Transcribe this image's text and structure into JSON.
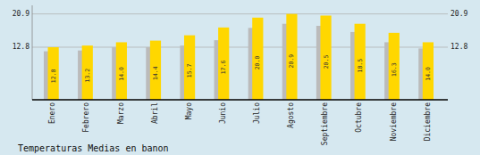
{
  "chart_data": {
    "type": "bar",
    "title": "Temperaturas Medias en banon",
    "categories": [
      "Enero",
      "Febrero",
      "Marzo",
      "Abril",
      "Mayo",
      "Junio",
      "Julio",
      "Agosto",
      "Septiembre",
      "Octubre",
      "Noviembre",
      "Diciembre"
    ],
    "series": [
      {
        "color": "#BBBBBB",
        "values": [
          11.8,
          12.0,
          12.8,
          12.8,
          13.2,
          14.5,
          17.5,
          18.5,
          18.0,
          16.5,
          14.0,
          12.5
        ]
      },
      {
        "color": "#FFD700",
        "values": [
          12.8,
          13.2,
          14.0,
          14.4,
          15.7,
          17.6,
          20.0,
          20.9,
          20.5,
          18.5,
          16.3,
          14.0
        ],
        "value_labels": [
          "12.8",
          "13.2",
          "14.0",
          "14.4",
          "15.7",
          "17.6",
          "20.0",
          "20.9",
          "20.5",
          "18.5",
          "16.3",
          "14.0"
        ],
        "data_labels": true
      }
    ],
    "ylim": [
      0,
      22.99
    ],
    "yticks": [
      12.8,
      20.9
    ],
    "y2lim": [
      0,
      22.99
    ],
    "y2ticks": [
      12.8,
      20.9
    ],
    "grid": true
  }
}
